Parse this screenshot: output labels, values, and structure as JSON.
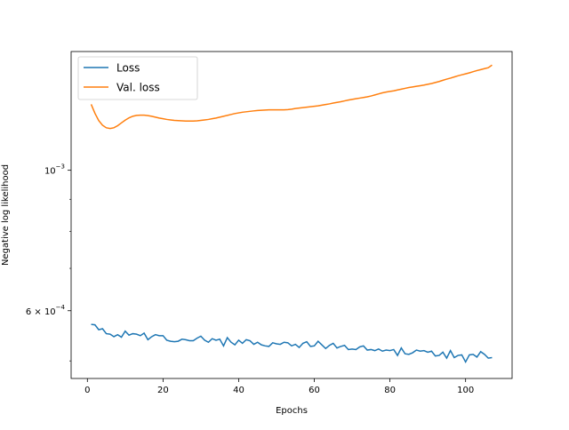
{
  "chart_data": {
    "type": "line",
    "y_scale": "log",
    "xlabel": "Epochs",
    "ylabel": "Negative log likelihood",
    "legend": "upper left",
    "x": [
      1,
      2,
      3,
      4,
      5,
      6,
      7,
      8,
      9,
      10,
      11,
      12,
      13,
      14,
      15,
      16,
      17,
      18,
      19,
      20,
      21,
      22,
      23,
      24,
      25,
      26,
      27,
      28,
      29,
      30,
      31,
      32,
      33,
      34,
      35,
      36,
      37,
      38,
      39,
      40,
      41,
      42,
      43,
      44,
      45,
      46,
      47,
      48,
      49,
      50,
      51,
      52,
      53,
      54,
      55,
      56,
      57,
      58,
      59,
      60,
      61,
      62,
      63,
      64,
      65,
      66,
      67,
      68,
      69,
      70,
      71,
      72,
      73,
      74,
      75,
      76,
      77,
      78,
      79,
      80,
      81,
      82,
      83,
      84,
      85,
      86,
      87,
      88,
      89,
      90,
      91,
      92,
      93,
      94,
      95,
      96,
      97,
      98,
      99,
      100,
      101,
      102,
      103,
      104,
      105,
      106,
      107
    ],
    "series": [
      {
        "name": "Loss",
        "color": "#1f77b4",
        "values": [
          0.000571,
          0.00057,
          0.00056,
          0.000562,
          0.000552,
          0.000551,
          0.000546,
          0.00055,
          0.000545,
          0.000557,
          0.000549,
          0.000552,
          0.000551,
          0.000548,
          0.000553,
          0.00054,
          0.000546,
          0.00055,
          0.000548,
          0.000548,
          0.000539,
          0.000537,
          0.000536,
          0.000537,
          0.000541,
          0.00054,
          0.000538,
          0.000538,
          0.000543,
          0.000547,
          0.000539,
          0.000535,
          0.000542,
          0.000539,
          0.000541,
          0.000528,
          0.000544,
          0.000535,
          0.00053,
          0.000539,
          0.000533,
          0.00054,
          0.000538,
          0.000531,
          0.000535,
          0.00053,
          0.000528,
          0.000527,
          0.000534,
          0.000532,
          0.000531,
          0.000535,
          0.000534,
          0.000528,
          0.000531,
          0.000525,
          0.000533,
          0.000536,
          0.000527,
          0.000528,
          0.000537,
          0.00053,
          0.000523,
          0.000529,
          0.000533,
          0.000524,
          0.000527,
          0.000529,
          0.000521,
          0.000522,
          0.000521,
          0.000526,
          0.000528,
          0.00052,
          0.000521,
          0.000519,
          0.000522,
          0.000518,
          0.00052,
          0.000519,
          0.000521,
          0.00051,
          0.000524,
          0.000513,
          0.000512,
          0.000515,
          0.00052,
          0.000518,
          0.000519,
          0.000516,
          0.000518,
          0.000509,
          0.00051,
          0.000516,
          0.000505,
          0.000519,
          0.000506,
          0.00051,
          0.000511,
          0.000498,
          0.000511,
          0.000512,
          0.000507,
          0.000517,
          0.000512,
          0.000505,
          0.000506
        ]
      },
      {
        "name": "Val. loss",
        "color": "#ff7f0e",
        "values": [
          0.001271,
          0.00123,
          0.001198,
          0.001178,
          0.001167,
          0.001164,
          0.001167,
          0.001176,
          0.001188,
          0.0012,
          0.00121,
          0.001217,
          0.001221,
          0.001222,
          0.001222,
          0.00122,
          0.001217,
          0.001213,
          0.001209,
          0.001206,
          0.001203,
          0.001201,
          0.001199,
          0.001198,
          0.001197,
          0.001196,
          0.001196,
          0.001196,
          0.001197,
          0.001199,
          0.001201,
          0.001203,
          0.001206,
          0.001209,
          0.001213,
          0.001217,
          0.001221,
          0.001225,
          0.001229,
          0.001232,
          0.001235,
          0.001237,
          0.001239,
          0.001241,
          0.001243,
          0.001244,
          0.001245,
          0.001246,
          0.001246,
          0.001246,
          0.001246,
          0.001246,
          0.001247,
          0.001249,
          0.001252,
          0.001254,
          0.001256,
          0.001258,
          0.00126,
          0.001262,
          0.001264,
          0.001267,
          0.00127,
          0.001273,
          0.001277,
          0.00128,
          0.001283,
          0.001287,
          0.001291,
          0.001294,
          0.001297,
          0.0013,
          0.001303,
          0.001306,
          0.00131,
          0.001315,
          0.00132,
          0.001325,
          0.001329,
          0.001332,
          0.001335,
          0.001339,
          0.001343,
          0.001347,
          0.001351,
          0.001354,
          0.001357,
          0.00136,
          0.001363,
          0.001367,
          0.001371,
          0.001376,
          0.001381,
          0.001387,
          0.001393,
          0.001398,
          0.001404,
          0.00141,
          0.001415,
          0.00142,
          0.001425,
          0.001431,
          0.001437,
          0.001442,
          0.001447,
          0.001452,
          0.001466
        ]
      }
    ],
    "xlim": [
      -4.3,
      112.3
    ],
    "xticks": [
      0,
      20,
      40,
      60,
      80,
      100
    ],
    "ylim": [
      0.000469,
      0.00154
    ],
    "yticks": [
      {
        "value": 0.0006,
        "label": "6 × 10",
        "exponent": "−4"
      },
      {
        "value": 0.001,
        "label": "10",
        "exponent": "−3"
      }
    ],
    "yminorticks": [
      0.0005,
      0.0007,
      0.0008,
      0.0009
    ]
  }
}
